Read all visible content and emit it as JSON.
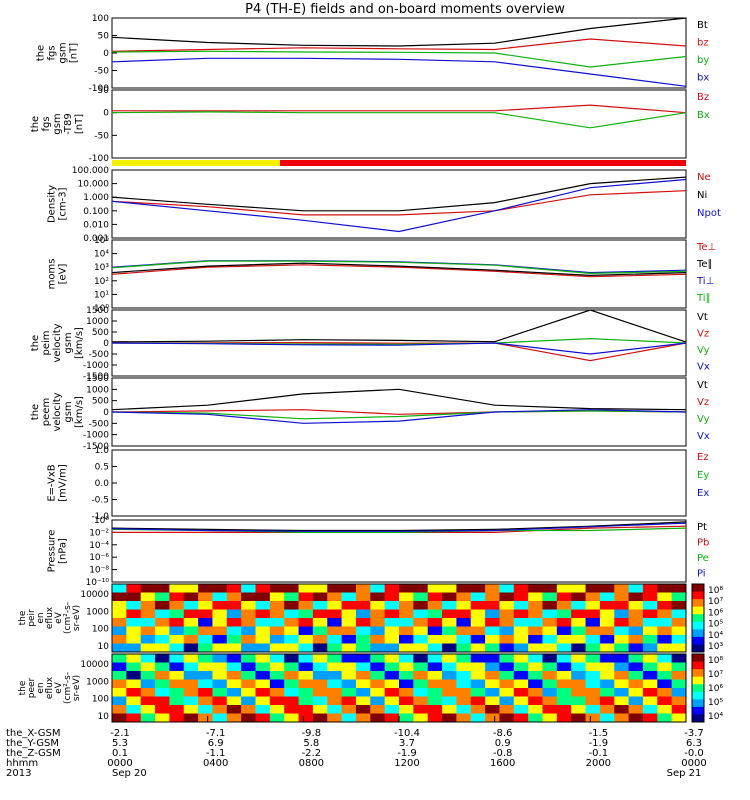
{
  "chart_data": {
    "type": "line",
    "title": "P4 (TH-E) fields and on-board moments overview",
    "x": [
      "0000",
      "0400",
      "0800",
      "1200",
      "1600",
      "2000",
      "0000"
    ],
    "panels": [
      {
        "ylabel": [
          "the",
          "fgs",
          "gsm",
          "[nT]"
        ],
        "ylim": [
          -100,
          100
        ],
        "yticks": [
          "100",
          "50",
          "0",
          "-50",
          "-100"
        ],
        "series": [
          {
            "name": "Bt",
            "color": "#000000",
            "values": [
              45,
              30,
              22,
              20,
              28,
              70,
              100
            ]
          },
          {
            "name": "bz",
            "color": "#d01010",
            "values": [
              5,
              10,
              15,
              12,
              10,
              40,
              20
            ]
          },
          {
            "name": "by",
            "color": "#10b010",
            "values": [
              3,
              5,
              3,
              2,
              0,
              -40,
              -10
            ]
          },
          {
            "name": "bx",
            "color": "#1010d0",
            "values": [
              -25,
              -15,
              -15,
              -18,
              -25,
              -60,
              -95
            ]
          }
        ]
      },
      {
        "ylabel": [
          "the",
          "fgs",
          "gsm",
          "-T89",
          "[nT]"
        ],
        "ylim": [
          -120,
          60
        ],
        "yticks": [
          "50",
          "0",
          "-50",
          "-100"
        ],
        "series": [
          {
            "name": "Bz",
            "color": "#d01010",
            "values": [
              5,
              5,
              5,
              5,
              5,
              20,
              0
            ]
          },
          {
            "name": "Bx",
            "color": "#10b010",
            "values": [
              0,
              2,
              0,
              0,
              0,
              -40,
              0
            ]
          }
        ]
      },
      {
        "ylabel": [
          "Density",
          "[cm-3]"
        ],
        "scale": "log",
        "yticks": [
          "100.000",
          "10.000",
          "1.000",
          "0.100",
          "0.010",
          "0.001"
        ],
        "series": [
          {
            "name": "Ne",
            "color": "#d01010",
            "values": [
              0.5,
              0.2,
              0.05,
              0.05,
              0.1,
              1.5,
              3
            ]
          },
          {
            "name": "Ni",
            "color": "#000000",
            "values": [
              1,
              0.3,
              0.1,
              0.1,
              0.4,
              10,
              30
            ]
          },
          {
            "name": "Npot",
            "color": "#1010d0",
            "values": [
              0.5,
              0.1,
              0.02,
              0.003,
              0.1,
              5,
              20
            ]
          }
        ]
      },
      {
        "ylabel": [
          "moms",
          "[eV]"
        ],
        "scale": "log",
        "yticks": [
          "10⁵",
          "10⁴",
          "10³",
          "10²",
          "10¹",
          "10⁰"
        ],
        "series": [
          {
            "name": "Te⊥",
            "color": "#d01010",
            "values": [
              300,
              1000,
              1500,
              1000,
              500,
              200,
              300
            ]
          },
          {
            "name": "Te∥",
            "color": "#000000",
            "values": [
              400,
              1200,
              2000,
              1200,
              600,
              250,
              400
            ]
          },
          {
            "name": "Ti⊥",
            "color": "#1010d0",
            "values": [
              1000,
              3000,
              3000,
              2500,
              1500,
              400,
              600
            ]
          },
          {
            "name": "Ti∥",
            "color": "#10b010",
            "values": [
              900,
              2800,
              2800,
              2300,
              1400,
              350,
              500
            ]
          }
        ]
      },
      {
        "ylabel": [
          "the",
          "peim",
          "velocity",
          "gsm",
          "[km/s]"
        ],
        "ylim": [
          -1500,
          1500
        ],
        "yticks": [
          "1500",
          "1000",
          "500",
          "0",
          "-500",
          "-1000",
          "-1500"
        ],
        "series": [
          {
            "name": "Vt",
            "color": "#000000",
            "values": [
              50,
              80,
              150,
              120,
              60,
              1500,
              40
            ]
          },
          {
            "name": "Vz",
            "color": "#d01010",
            "values": [
              0,
              10,
              20,
              -10,
              0,
              -800,
              0
            ]
          },
          {
            "name": "Vy",
            "color": "#10b010",
            "values": [
              0,
              -20,
              -50,
              -60,
              0,
              200,
              0
            ]
          },
          {
            "name": "Vx",
            "color": "#1010d0",
            "values": [
              0,
              -30,
              -80,
              -100,
              0,
              -500,
              0
            ]
          }
        ]
      },
      {
        "ylabel": [
          "the",
          "peem",
          "velocity",
          "gsm",
          "[km/s]"
        ],
        "ylim": [
          -1500,
          1500
        ],
        "yticks": [
          "1500",
          "1000",
          "500",
          "0",
          "-500",
          "-1000",
          "-1500"
        ],
        "series": [
          {
            "name": "Vt",
            "color": "#000000",
            "values": [
              100,
              300,
              800,
              1000,
              300,
              150,
              100
            ]
          },
          {
            "name": "Vz",
            "color": "#d01010",
            "values": [
              0,
              50,
              100,
              -100,
              0,
              50,
              0
            ]
          },
          {
            "name": "Vy",
            "color": "#10b010",
            "values": [
              0,
              -50,
              -300,
              -200,
              0,
              50,
              0
            ]
          },
          {
            "name": "Vx",
            "color": "#1010d0",
            "values": [
              0,
              -100,
              -500,
              -400,
              0,
              100,
              0
            ]
          }
        ]
      },
      {
        "ylabel": [
          "E=-VxB",
          "[mV/m]"
        ],
        "ylim": [
          -1,
          1
        ],
        "yticks": [
          "1.0",
          "0.5",
          "0.0",
          "-0.5",
          "-1.0"
        ],
        "series": [
          {
            "name": "Ez",
            "color": "#d01010",
            "values": []
          },
          {
            "name": "Ey",
            "color": "#10b010",
            "values": []
          },
          {
            "name": "Ex",
            "color": "#1010d0",
            "values": []
          }
        ]
      },
      {
        "ylabel": [
          "Pressure",
          "[nPa]"
        ],
        "scale": "log",
        "yticks": [
          "10⁰",
          "10⁻²",
          "10⁻⁴",
          "10⁻⁶",
          "10⁻⁸",
          "10⁻¹⁰"
        ],
        "series": [
          {
            "name": "Pt",
            "color": "#000000",
            "values": [
              0.05,
              0.03,
              0.02,
              0.02,
              0.03,
              0.1,
              0.5
            ]
          },
          {
            "name": "Pb",
            "color": "#d01010",
            "values": [
              0.01,
              0.01,
              0.01,
              0.01,
              0.01,
              0.05,
              0.1
            ]
          },
          {
            "name": "Pe",
            "color": "#10b010",
            "values": [
              0.03,
              0.02,
              0.01,
              0.01,
              0.02,
              0.02,
              0.05
            ]
          },
          {
            "name": "Pi",
            "color": "#1010d0",
            "values": [
              0.04,
              0.02,
              0.015,
              0.015,
              0.02,
              0.08,
              0.3
            ]
          }
        ]
      }
    ],
    "spectrograms": [
      {
        "type": "heatmap",
        "ylabel": [
          "the",
          "peir",
          "en",
          "eflux",
          "eV",
          "(cm²-s-",
          "sr-eV)"
        ],
        "yticks": [
          "10000",
          "1000",
          "100",
          "10"
        ],
        "colorbar_ticks": [
          "10⁸",
          "10⁷",
          "10⁶",
          "10⁵",
          "10⁴",
          "10³"
        ]
      },
      {
        "type": "heatmap",
        "ylabel": [
          "the",
          "peer",
          "en",
          "eflux",
          "eV",
          "(cm²-s-",
          "sr-eV)"
        ],
        "yticks": [
          "10000",
          "1000",
          "100",
          "10"
        ],
        "colorbar_ticks": [
          "10⁸",
          "10⁷",
          "10⁶",
          "10⁵",
          "10⁴"
        ]
      }
    ],
    "ephemeris": {
      "rows": [
        {
          "label": "the_X-GSM",
          "values": [
            "-2.1",
            "-7.1",
            "-9.8",
            "-10.4",
            "-8.6",
            "-1.5",
            "-3.7"
          ]
        },
        {
          "label": "the_Y-GSM",
          "values": [
            "5.3",
            "6.9",
            "5.8",
            "3.7",
            "0.9",
            "-1.9",
            "6.3"
          ]
        },
        {
          "label": "the_Z-GSM",
          "values": [
            "0.1",
            "-1.1",
            "-2.2",
            "-1.9",
            "-0.8",
            "-0.1",
            "-0.0"
          ]
        },
        {
          "label": "hhmm",
          "values": [
            "0000",
            "0400",
            "0800",
            "1200",
            "1600",
            "2000",
            "0000"
          ]
        }
      ],
      "year": "2013",
      "date_start": "Sep 20",
      "date_end": "Sep 21"
    }
  }
}
